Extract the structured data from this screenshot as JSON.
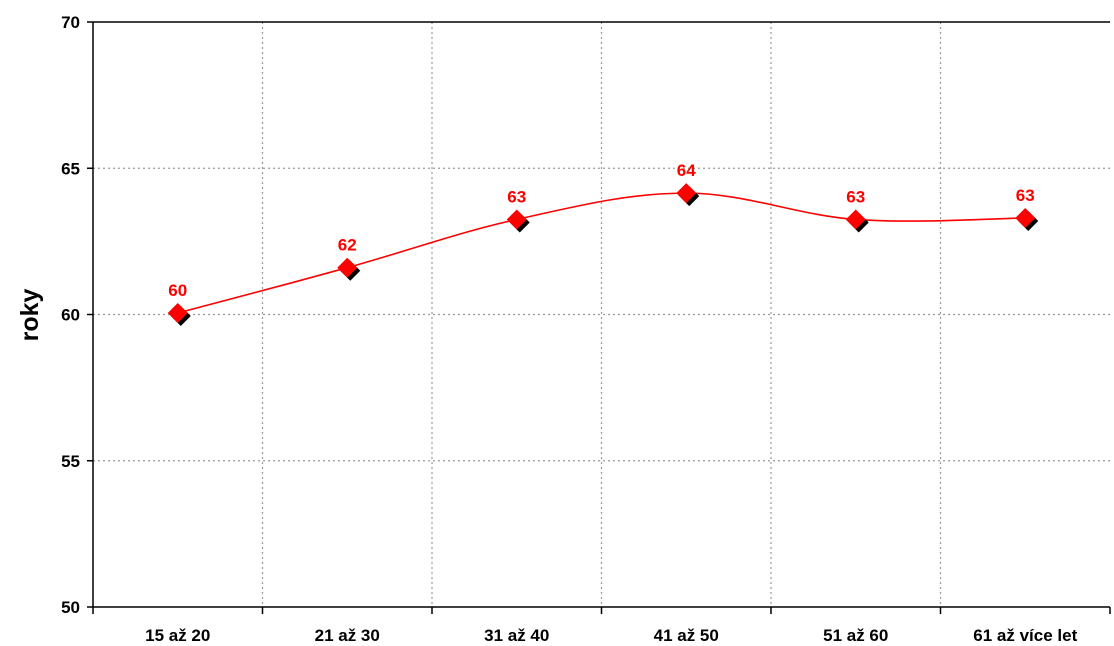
{
  "chart_data": {
    "type": "line",
    "title": "",
    "xlabel": "",
    "ylabel": "roky",
    "categories": [
      "15 až 20",
      "21 až 30",
      "31 až 40",
      "41 až 50",
      "51 až 60",
      "61 až více let"
    ],
    "series": [
      {
        "values": [
          60.05,
          61.6,
          63.25,
          64.15,
          63.25,
          63.3
        ],
        "labels": [
          "60",
          "62",
          "63",
          "64",
          "63",
          "63"
        ]
      }
    ],
    "ylim": [
      50,
      70
    ],
    "yticks": [
      "50",
      "55",
      "60",
      "65",
      "70"
    ],
    "grid": true,
    "legend": "none",
    "colors": {
      "line": "#ff0000",
      "marker": "#ff0000",
      "marker_shadow": "#000000",
      "data_label": "#ff0000",
      "grid": "#9a9a9a",
      "axis": "#000000"
    }
  }
}
